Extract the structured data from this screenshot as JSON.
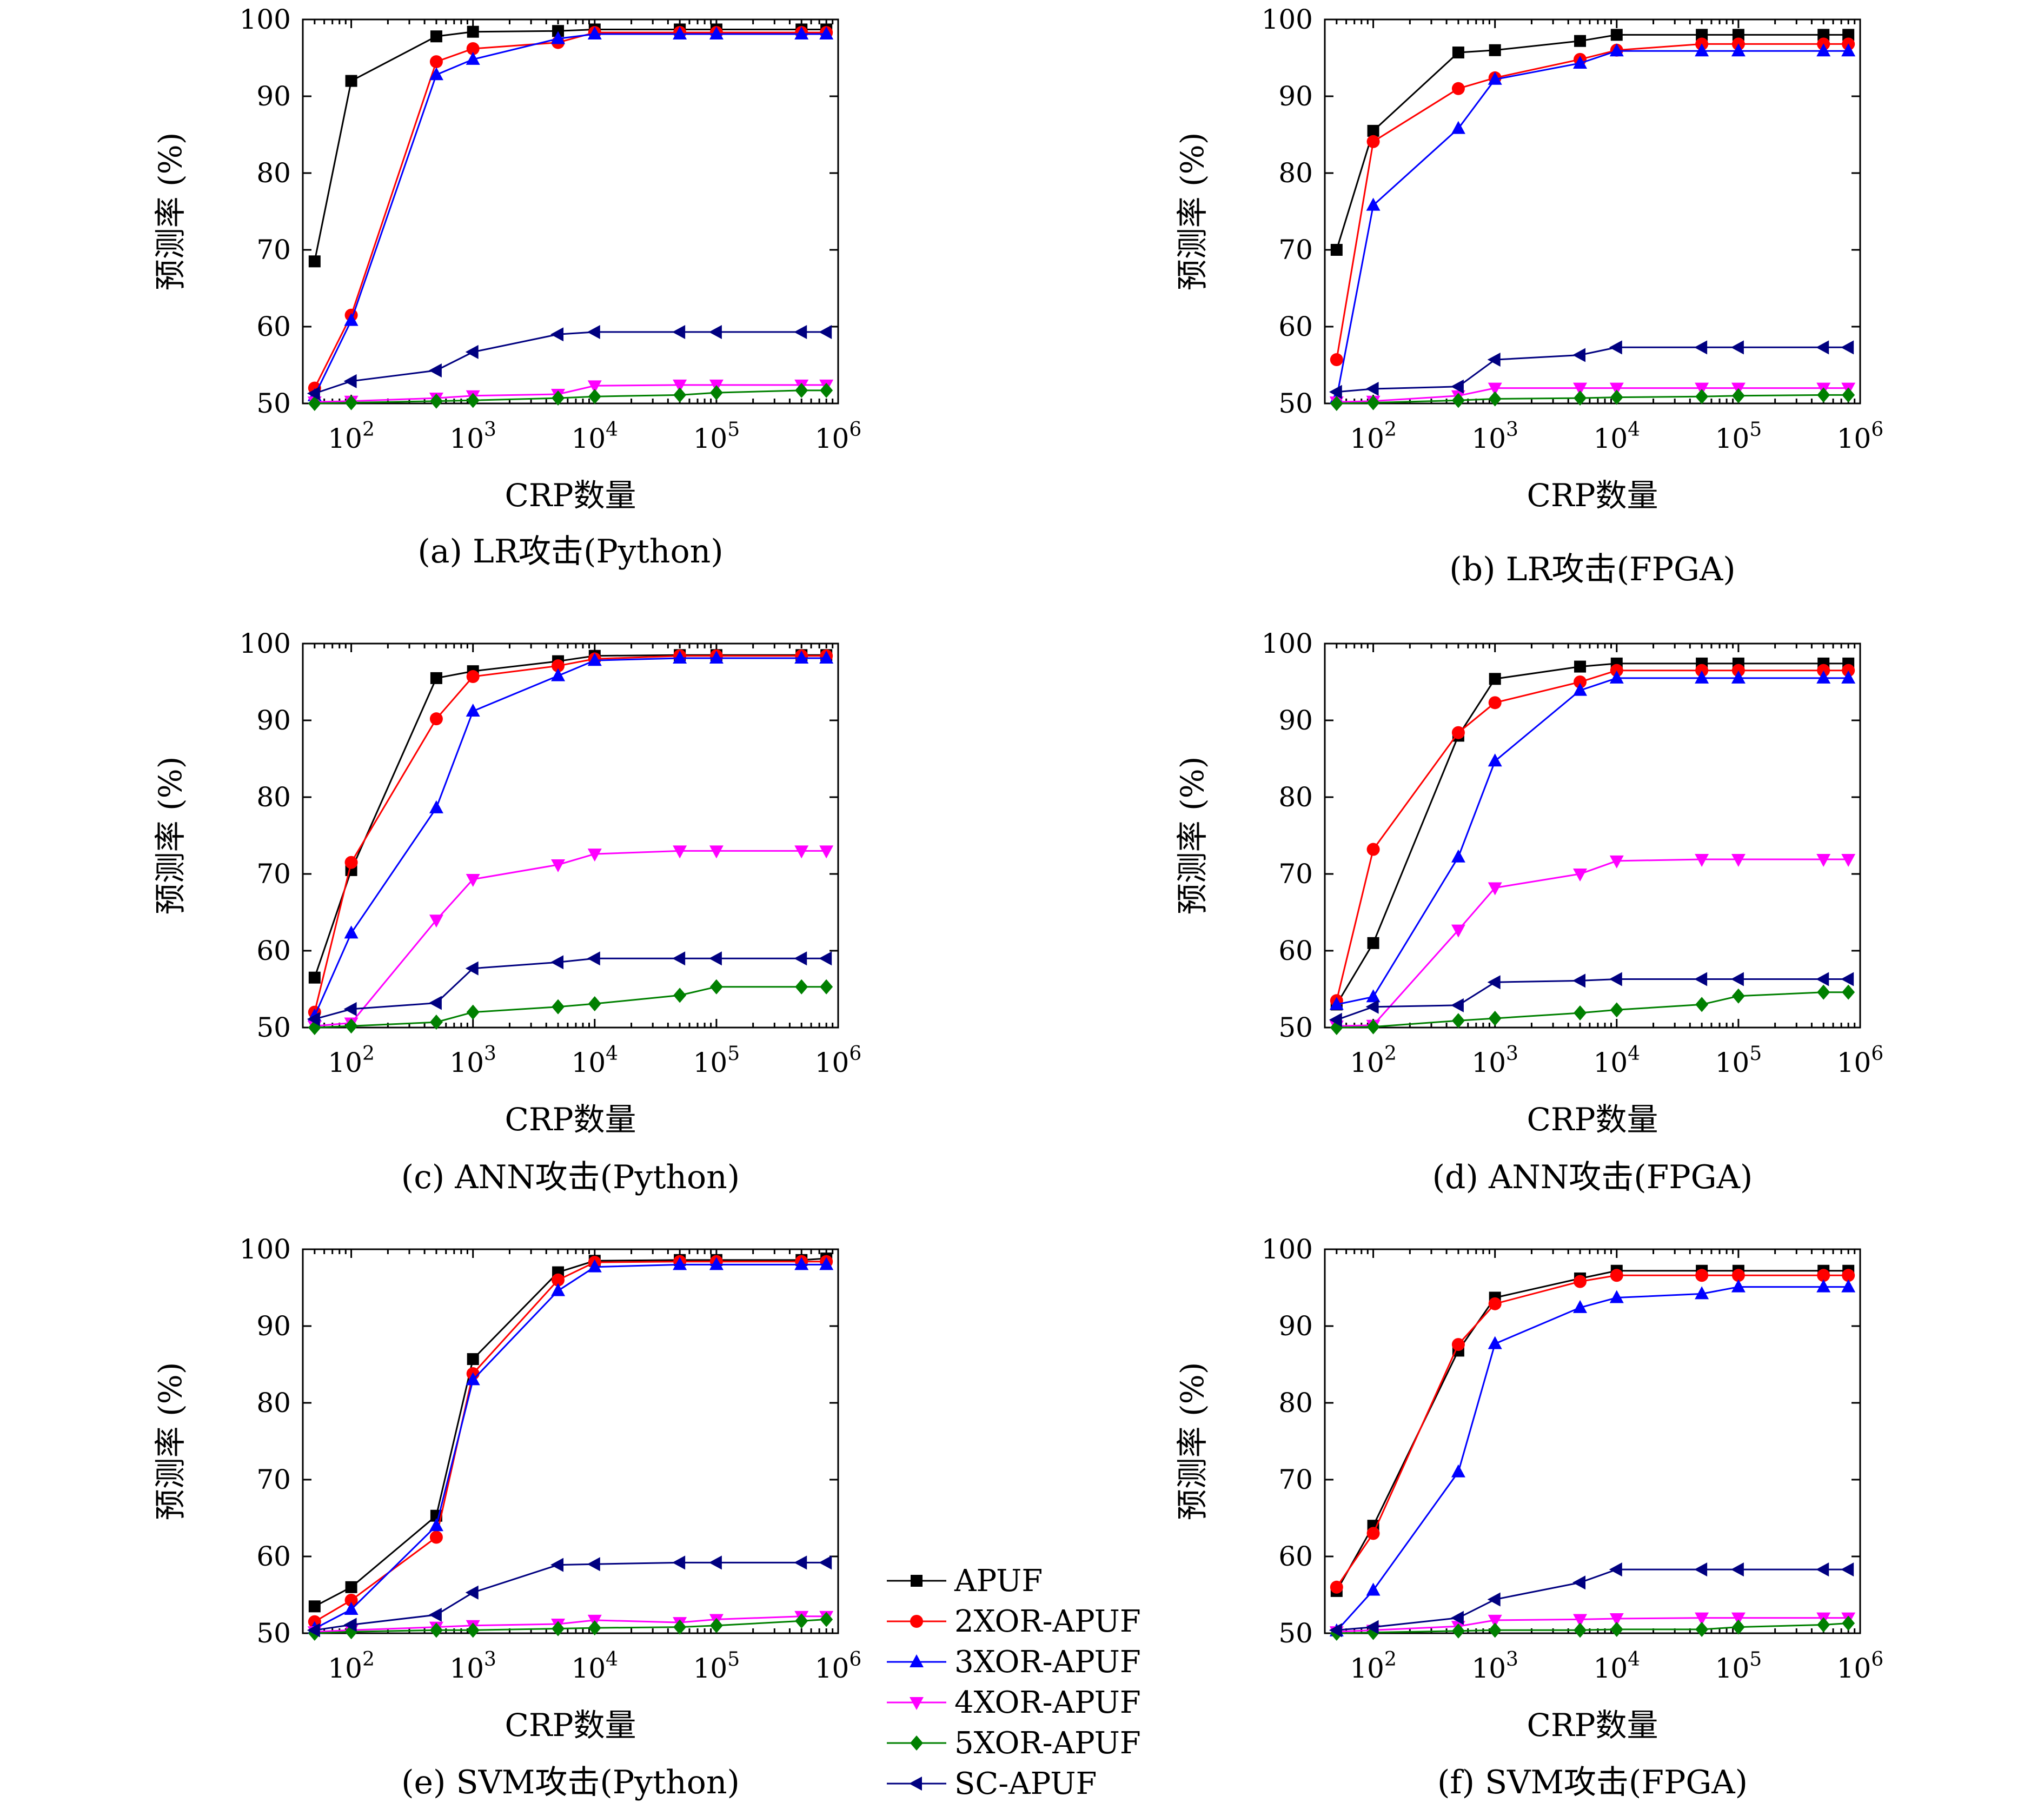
{
  "figure": {
    "x_ticks": [
      {
        "value": 100,
        "base": "10",
        "exp": "2"
      },
      {
        "value": 1000,
        "base": "10",
        "exp": "3"
      },
      {
        "value": 10000,
        "base": "10",
        "exp": "4"
      },
      {
        "value": 100000,
        "base": "10",
        "exp": "5"
      },
      {
        "value": 1000000,
        "base": "10",
        "exp": "6"
      }
    ],
    "y_ticks": [
      "50",
      "60",
      "70",
      "80",
      "90",
      "100"
    ]
  },
  "legend": {
    "entries": [
      "APUF",
      "2XOR-APUF",
      "3XOR-APUF",
      "4XOR-APUF",
      "5XOR-APUF",
      "SC-APUF"
    ]
  },
  "series_styles": [
    {
      "color": "#000000",
      "marker": "square"
    },
    {
      "color": "#ff0000",
      "marker": "circle"
    },
    {
      "color": "#0000ff",
      "marker": "triangle-up"
    },
    {
      "color": "#ff00ff",
      "marker": "triangle-down"
    },
    {
      "color": "#008000",
      "marker": "diamond"
    },
    {
      "color": "#000080",
      "marker": "triangle-left"
    }
  ],
  "chart_data": [
    {
      "type": "line",
      "caption": "(a) LR攻击(Python)",
      "xlabel": "CRP数量",
      "ylabel": "预测率 (%)",
      "x_scale": "log",
      "xlim": [
        40,
        1000000
      ],
      "ylim": [
        50,
        100
      ],
      "grid": false,
      "legend": "outside-bottom-center",
      "x": [
        50,
        100,
        500,
        1000,
        5000,
        10000,
        50000,
        100000,
        500000,
        800000
      ],
      "series": [
        {
          "name": "APUF",
          "values": [
            68.5,
            92,
            97.8,
            98.4,
            98.5,
            98.7,
            98.7,
            98.7,
            98.7,
            98.7
          ]
        },
        {
          "name": "2XOR-APUF",
          "values": [
            52,
            61.5,
            94.5,
            96.2,
            97,
            98.3,
            98.3,
            98.3,
            98.3,
            98.3
          ]
        },
        {
          "name": "3XOR-APUF",
          "values": [
            51,
            60.8,
            92.8,
            94.8,
            97.5,
            98.1,
            98.1,
            98.1,
            98.1,
            98.1
          ]
        },
        {
          "name": "4XOR-APUF",
          "values": [
            50.2,
            50.3,
            50.7,
            51,
            51.2,
            52.3,
            52.4,
            52.4,
            52.4,
            52.4
          ]
        },
        {
          "name": "5XOR-APUF",
          "values": [
            50,
            50.1,
            50.3,
            50.4,
            50.7,
            50.9,
            51.1,
            51.4,
            51.7,
            51.7
          ]
        },
        {
          "name": "SC-APUF",
          "values": [
            51.3,
            52.9,
            54.3,
            56.7,
            59,
            59.3,
            59.3,
            59.3,
            59.3,
            59.3
          ]
        }
      ]
    },
    {
      "type": "line",
      "caption": "(b) LR攻击(FPGA)",
      "xlabel": "CRP数量",
      "ylabel": "预测率 (%)",
      "x_scale": "log",
      "xlim": [
        40,
        1000000
      ],
      "ylim": [
        50,
        100
      ],
      "grid": false,
      "x": [
        50,
        100,
        500,
        1000,
        5000,
        10000,
        50000,
        100000,
        500000,
        800000
      ],
      "series": [
        {
          "name": "APUF",
          "values": [
            70,
            85.5,
            95.7,
            96,
            97.2,
            98,
            98,
            98,
            98,
            98
          ]
        },
        {
          "name": "2XOR-APUF",
          "values": [
            55.7,
            84.1,
            91,
            92.4,
            94.8,
            96,
            96.8,
            96.8,
            96.8,
            96.8
          ]
        },
        {
          "name": "3XOR-APUF",
          "values": [
            50.7,
            75.8,
            85.8,
            92.2,
            94.3,
            95.9,
            95.9,
            95.9,
            95.9,
            95.9
          ]
        },
        {
          "name": "4XOR-APUF",
          "values": [
            50.2,
            50.3,
            51,
            52,
            52,
            52,
            52,
            52,
            52,
            52
          ]
        },
        {
          "name": "5XOR-APUF",
          "values": [
            50,
            50.1,
            50.4,
            50.6,
            50.7,
            50.8,
            50.9,
            51,
            51.1,
            51.1
          ]
        },
        {
          "name": "SC-APUF",
          "values": [
            51.5,
            51.9,
            52.2,
            55.7,
            56.3,
            57.3,
            57.3,
            57.3,
            57.3,
            57.3
          ]
        }
      ]
    },
    {
      "type": "line",
      "caption": "(c) ANN攻击(Python)",
      "xlabel": "CRP数量",
      "ylabel": "预测率 (%)",
      "x_scale": "log",
      "xlim": [
        40,
        1000000
      ],
      "ylim": [
        50,
        100
      ],
      "grid": false,
      "x": [
        50,
        100,
        500,
        1000,
        5000,
        10000,
        50000,
        100000,
        500000,
        800000
      ],
      "series": [
        {
          "name": "APUF",
          "values": [
            56.5,
            70.5,
            95.5,
            96.4,
            97.7,
            98.4,
            98.5,
            98.5,
            98.5,
            98.5
          ]
        },
        {
          "name": "2XOR-APUF",
          "values": [
            52,
            71.5,
            90.2,
            95.7,
            97.1,
            98,
            98.4,
            98.4,
            98.4,
            98.4
          ]
        },
        {
          "name": "3XOR-APUF",
          "values": [
            51.5,
            62.3,
            78.6,
            91.2,
            95.8,
            97.8,
            98.1,
            98.1,
            98.1,
            98.1
          ]
        },
        {
          "name": "4XOR-APUF",
          "values": [
            50.2,
            50.6,
            64,
            69.3,
            71.2,
            72.6,
            73,
            73,
            73,
            73
          ]
        },
        {
          "name": "5XOR-APUF",
          "values": [
            50,
            50.2,
            50.7,
            52,
            52.7,
            53.1,
            54.2,
            55.3,
            55.3,
            55.3
          ]
        },
        {
          "name": "SC-APUF",
          "values": [
            51.1,
            52.4,
            53.2,
            57.7,
            58.5,
            59,
            59,
            59,
            59,
            59
          ]
        }
      ]
    },
    {
      "type": "line",
      "caption": "(d) ANN攻击(FPGA)",
      "xlabel": "CRP数量",
      "ylabel": "预测率 (%)",
      "x_scale": "log",
      "xlim": [
        40,
        1000000
      ],
      "ylim": [
        50,
        100
      ],
      "grid": false,
      "x": [
        50,
        100,
        500,
        1000,
        5000,
        10000,
        50000,
        100000,
        500000,
        800000
      ],
      "series": [
        {
          "name": "APUF",
          "values": [
            53,
            61,
            88,
            95.4,
            97,
            97.4,
            97.4,
            97.4,
            97.4,
            97.4
          ]
        },
        {
          "name": "2XOR-APUF",
          "values": [
            53.5,
            73.2,
            88.4,
            92.3,
            95,
            96.5,
            96.5,
            96.5,
            96.5,
            96.5
          ]
        },
        {
          "name": "3XOR-APUF",
          "values": [
            53,
            54,
            72.2,
            84.7,
            93.9,
            95.5,
            95.5,
            95.5,
            95.5,
            95.5
          ]
        },
        {
          "name": "4XOR-APUF",
          "values": [
            50.2,
            50.3,
            62.7,
            68.2,
            70,
            71.7,
            71.9,
            71.9,
            71.9,
            71.9
          ]
        },
        {
          "name": "5XOR-APUF",
          "values": [
            50,
            50.1,
            50.9,
            51.2,
            51.9,
            52.3,
            53,
            54.1,
            54.6,
            54.6
          ]
        },
        {
          "name": "SC-APUF",
          "values": [
            51,
            52.7,
            52.9,
            55.9,
            56.1,
            56.3,
            56.3,
            56.3,
            56.3,
            56.3
          ]
        }
      ]
    },
    {
      "type": "line",
      "caption": "(e) SVM攻击(Python)",
      "xlabel": "CRP数量",
      "ylabel": "预测率 (%)",
      "x_scale": "log",
      "xlim": [
        40,
        1000000
      ],
      "ylim": [
        50,
        100
      ],
      "grid": false,
      "x": [
        50,
        100,
        500,
        1000,
        5000,
        10000,
        50000,
        100000,
        500000,
        800000
      ],
      "series": [
        {
          "name": "APUF",
          "values": [
            53.5,
            56,
            65.3,
            85.7,
            97,
            98.5,
            98.6,
            98.6,
            98.6,
            98.8
          ]
        },
        {
          "name": "2XOR-APUF",
          "values": [
            51.5,
            54.3,
            62.5,
            83.8,
            96,
            98.3,
            98.4,
            98.4,
            98.4,
            98.4
          ]
        },
        {
          "name": "3XOR-APUF",
          "values": [
            50.6,
            53.1,
            64,
            83,
            94.6,
            97.7,
            98,
            98,
            98,
            98
          ]
        },
        {
          "name": "4XOR-APUF",
          "values": [
            50.2,
            50.4,
            50.8,
            51,
            51.2,
            51.7,
            51.4,
            51.8,
            52.2,
            52.2
          ]
        },
        {
          "name": "5XOR-APUF",
          "values": [
            50,
            50.2,
            50.4,
            50.4,
            50.6,
            50.7,
            50.8,
            51,
            51.6,
            51.8
          ]
        },
        {
          "name": "SC-APUF",
          "values": [
            50.4,
            51.1,
            52.4,
            55.3,
            58.9,
            59,
            59.2,
            59.2,
            59.2,
            59.2
          ]
        }
      ]
    },
    {
      "type": "line",
      "caption": "(f) SVM攻击(FPGA)",
      "xlabel": "CRP数量",
      "ylabel": "预测率 (%)",
      "x_scale": "log",
      "xlim": [
        40,
        1000000
      ],
      "ylim": [
        50,
        100
      ],
      "grid": false,
      "x": [
        50,
        100,
        500,
        1000,
        5000,
        10000,
        50000,
        100000,
        500000,
        800000
      ],
      "series": [
        {
          "name": "APUF",
          "values": [
            55.5,
            64,
            86.8,
            93.7,
            96.2,
            97.2,
            97.2,
            97.2,
            97.2,
            97.2
          ]
        },
        {
          "name": "2XOR-APUF",
          "values": [
            56,
            63,
            87.6,
            92.9,
            95.8,
            96.6,
            96.6,
            96.6,
            96.6,
            96.6
          ]
        },
        {
          "name": "3XOR-APUF",
          "values": [
            50.3,
            55.6,
            71,
            87.7,
            92.4,
            93.7,
            94.2,
            95.1,
            95.1,
            95.1
          ]
        },
        {
          "name": "4XOR-APUF",
          "values": [
            50.2,
            50.4,
            50.9,
            51.7,
            51.8,
            51.9,
            52,
            52,
            52,
            52
          ]
        },
        {
          "name": "5XOR-APUF",
          "values": [
            50,
            50.1,
            50.3,
            50.4,
            50.4,
            50.5,
            50.5,
            50.8,
            51.1,
            51.3
          ]
        },
        {
          "name": "SC-APUF",
          "values": [
            50.4,
            50.8,
            52,
            54.4,
            56.6,
            58.3,
            58.3,
            58.3,
            58.3,
            58.3
          ]
        }
      ]
    }
  ]
}
